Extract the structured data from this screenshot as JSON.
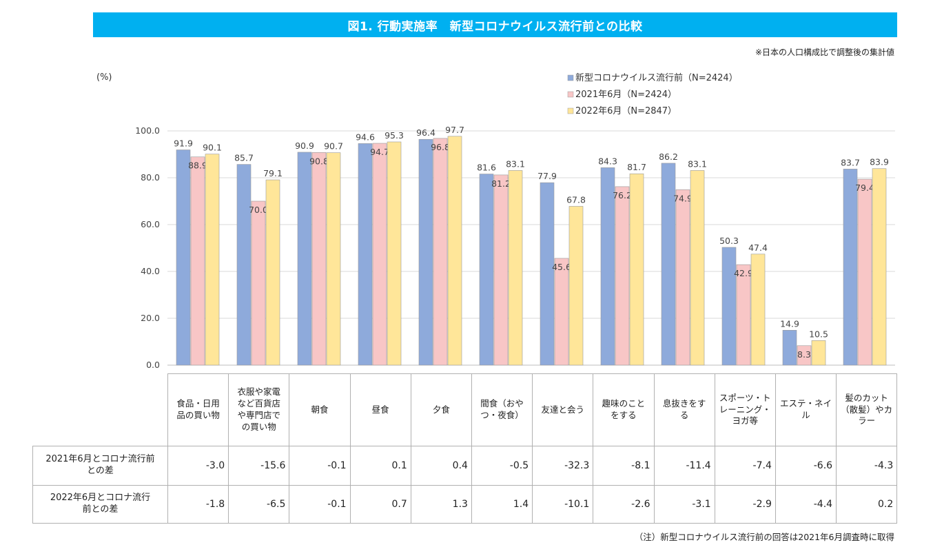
{
  "header": {
    "title": "図1. 行動実施率　新型コロナウイルス流行前との比較",
    "note_top": "※日本の人口構成比で調整後の集計値",
    "note_bottom": "（注）新型コロナウイルス流行前の回答は2021年6月調査時に取得"
  },
  "chart_data": {
    "type": "bar",
    "title": "図1. 行動実施率　新型コロナウイルス流行前との比較",
    "ylabel": "(%)",
    "ylim": [
      0,
      100
    ],
    "yticks": [
      "0.0",
      "20.0",
      "40.0",
      "60.0",
      "80.0",
      "100.0"
    ],
    "categories": [
      "食品・日用品の買い物",
      "衣服や家電など百貨店や専門店での買い物",
      "朝食",
      "昼食",
      "夕食",
      "間食（おやつ・夜食）",
      "友達と会う",
      "趣味のことをする",
      "息抜きをする",
      "スポーツ・トレーニング・ヨガ等",
      "エステ・ネイル",
      "髪のカット（散髪）やカラー"
    ],
    "series": [
      {
        "name": "新型コロナウイルス流行前（N=2424）",
        "color": "#8eaadb",
        "values": [
          91.9,
          85.7,
          90.9,
          94.6,
          96.4,
          81.6,
          77.9,
          84.3,
          86.2,
          50.3,
          14.9,
          83.7
        ]
      },
      {
        "name": "2021年6月（N=2424）",
        "color": "#f8c6c6",
        "values": [
          88.9,
          70.0,
          90.8,
          94.7,
          96.8,
          81.2,
          45.6,
          76.2,
          74.9,
          42.9,
          8.3,
          79.4
        ]
      },
      {
        "name": "2022年6月（N=2847）",
        "color": "#ffe699",
        "values": [
          90.1,
          79.1,
          90.7,
          95.3,
          97.7,
          83.1,
          67.8,
          81.7,
          83.1,
          47.4,
          10.5,
          83.9
        ]
      }
    ],
    "legend": "top-right"
  },
  "table": {
    "categories": [
      [
        "食品・日用",
        "品の買い物"
      ],
      [
        "衣服や家電",
        "など百貨店",
        "や専門店で",
        "の買い物"
      ],
      [
        "朝食"
      ],
      [
        "昼食"
      ],
      [
        "夕食"
      ],
      [
        "間食（おや",
        "つ・夜食）"
      ],
      [
        "友達と会う"
      ],
      [
        "趣味のこと",
        "をする"
      ],
      [
        "息抜きをす",
        "る"
      ],
      [
        "スポーツ・ト",
        "レーニング・",
        "ヨガ等"
      ],
      [
        "エステ・ネイ",
        "ル"
      ],
      [
        "髪のカット",
        "（散髪）やカ",
        "ラー"
      ]
    ],
    "rows": [
      {
        "label_lines": [
          "2021年6月とコロナ流行前",
          "との差"
        ],
        "values": [
          "-3.0",
          "-15.6",
          "-0.1",
          "0.1",
          "0.4",
          "-0.5",
          "-32.3",
          "-8.1",
          "-11.4",
          "-7.4",
          "-6.6",
          "-4.3"
        ]
      },
      {
        "label_lines": [
          "2022年6月とコロナ流行",
          "前との差"
        ],
        "values": [
          "-1.8",
          "-6.5",
          "-0.1",
          "0.7",
          "1.3",
          "1.4",
          "-10.1",
          "-2.6",
          "-3.1",
          "-2.9",
          "-4.4",
          "0.2"
        ]
      }
    ]
  }
}
